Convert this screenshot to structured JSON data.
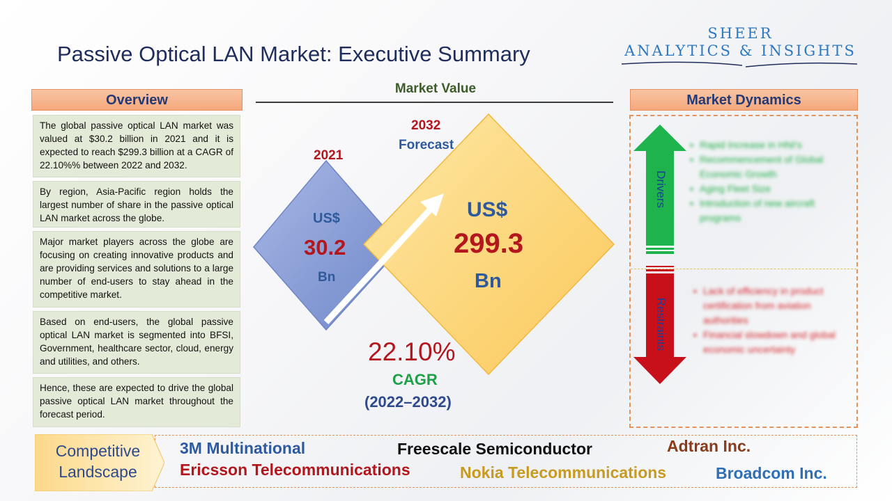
{
  "title": "Passive Optical LAN Market: Executive Summary",
  "logo": {
    "line1": "SHEER",
    "line2": "ANALYTICS & INSIGHTS"
  },
  "overview": {
    "header": "Overview",
    "paragraphs": [
      "The global passive optical LAN market was valued at $30.2 billion in 2021 and it is expected to reach $299.3 billion at a CAGR of 22.10%% between 2022 and 2032.",
      "By region, Asia-Pacific region holds the largest number of share in the passive optical LAN market across the globe.",
      "Major market players across the globe are focusing on creating innovative products and are providing services and solutions to a large number of end-users to stay ahead in the competitive market.",
      "Based on end-users, the global passive optical LAN market is segmented into BFSI, Government, healthcare sector, cloud, energy and utilities, and others.",
      "Hence, these are expected to drive the global passive optical LAN market throughout the forecast period."
    ]
  },
  "market_value": {
    "title": "Market Value",
    "year_start": "2021",
    "year_end": "2032",
    "forecast_label": "Forecast",
    "start": {
      "currency": "US$",
      "value": "30.2",
      "unit": "Bn"
    },
    "end": {
      "currency": "US$",
      "value": "299.3",
      "unit": "Bn"
    },
    "cagr": {
      "value": "22.10%",
      "label": "CAGR",
      "period": "(2022–2032)"
    },
    "colors": {
      "small_diamond": "#8a9fd6",
      "big_diamond": "#fdd67a",
      "red": "#b3161c",
      "blue": "#2e5a9c"
    }
  },
  "dynamics": {
    "header": "Market Dynamics",
    "drivers_label": "Drivers",
    "restraints_label": "Restraints",
    "drivers": [
      "Rapid Increase in HNI's",
      "Recommencement of Global Economic Growth",
      "Aging Fleet Size",
      "Introduction of new aircraft programs"
    ],
    "restraints": [
      "Lack of efficiency in product certification from aviation authorities",
      "Financial slowdown and global economic uncertainty"
    ],
    "colors": {
      "drivers": "#1fb34d",
      "restraints": "#c8101a"
    }
  },
  "competitive": {
    "label_line1": "Competitive",
    "label_line2": "Landscape",
    "companies": [
      {
        "name": "3M Multinational",
        "color": "#2e5aa0"
      },
      {
        "name": "Freescale Semiconductor",
        "color": "#111111"
      },
      {
        "name": "Adtran Inc.",
        "color": "#8a3b1a"
      },
      {
        "name": "Ericsson Telecommunications",
        "color": "#b3161c"
      },
      {
        "name": "Nokia Telecommunications",
        "color": "#c79a22"
      },
      {
        "name": "Broadcom Inc.",
        "color": "#2e6fb5"
      }
    ]
  }
}
